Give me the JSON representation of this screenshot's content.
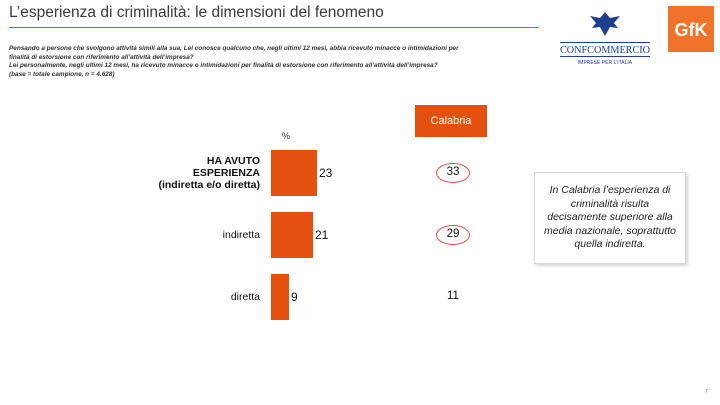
{
  "title": "L’esperienza di criminalità: le dimensioni del fenomeno",
  "question_lines": [
    "Pensando a persone che svolgono attività simili alla sua, Lei conosce qualcuno che, negli ultimi 12 mesi, abbia ricevuto minacce o intimidazioni per",
    "finalità di estorsione con riferimento all’attività dell’impresa?",
    "Lei personalmente, negli ultimi 12 mesi, ha ricevuto minacce o intimidazioni per finalità di estorsione con riferimento all’attività dell’impresa?",
    "(base = totale campione, n = 4.628)"
  ],
  "logos": {
    "confcommercio": "CONFCOMMERCIO",
    "confcommercio_tagline": "IMPRESE PER L'ITALIA",
    "gfk": "GfK"
  },
  "colors": {
    "accent": "#e4500e",
    "gfk": "#f0732a",
    "conf_blue": "#1e3f8c"
  },
  "region_label": "Calabria",
  "percent_label": "%",
  "chart_data": {
    "type": "bar",
    "orientation": "horizontal",
    "categories": [
      "HA AVUTO ESPERIENZA (indiretta e/o diretta)",
      "indiretta",
      "diretta"
    ],
    "category_lines": [
      [
        "HA AVUTO",
        "ESPERIENZA",
        "(indiretta e/o diretta)"
      ],
      [
        "indiretta"
      ],
      [
        "diretta"
      ]
    ],
    "series": [
      {
        "values": [
          23,
          21,
          9
        ]
      },
      {
        "name": "Calabria",
        "values": [
          33,
          29,
          11
        ]
      }
    ],
    "circled": [
      true,
      true,
      false
    ],
    "bar_labels": [
      "23",
      "21",
      "9"
    ],
    "region_labels": [
      "33",
      "29",
      "11"
    ]
  },
  "note": "In Calabria l’esperienza di criminalità risulta decisamente superiore alla media nazionale, soprattutto quella indiretta.",
  "page_number": "7"
}
